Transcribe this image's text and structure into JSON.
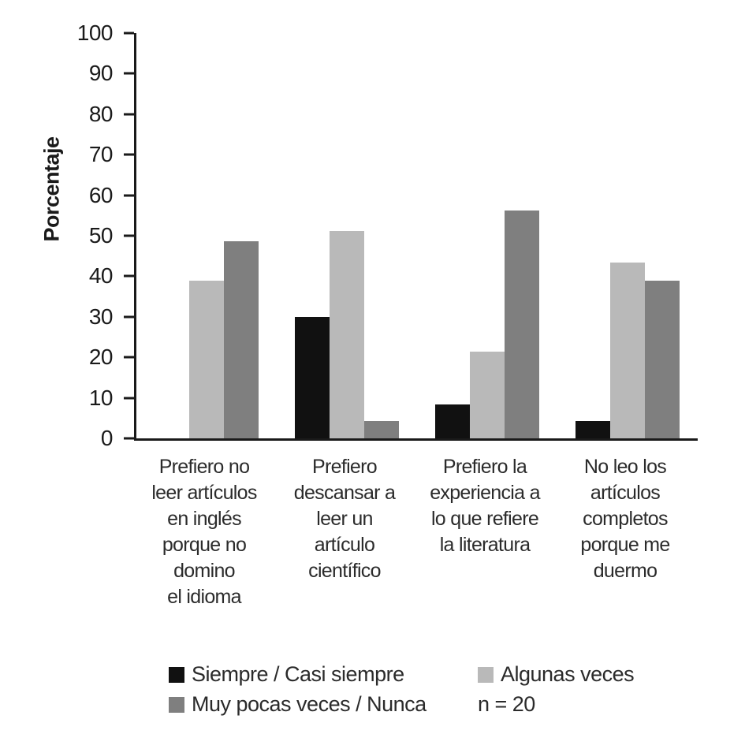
{
  "chart_data": {
    "type": "bar",
    "title": "",
    "xlabel": "",
    "ylabel": "Porcentaje",
    "ylim": [
      0,
      100
    ],
    "ytick_step": 10,
    "grid": false,
    "legend_position": "bottom",
    "note": "n = 20",
    "categories": [
      "Prefiero no\nleer artículos\nen inglés\nporque no domino\nel idioma",
      "Prefiero\ndescansar a\nleer un\nartículo\ncientífico",
      "Prefiero la\nexperiencia a\nlo que refiere\nla literatura",
      "No leo los\nartículos\ncompletos\nporque me\nduermo"
    ],
    "series": [
      {
        "name": "Siempre / Casi siempre",
        "color": "#111111",
        "values": [
          0,
          30,
          8.3,
          4.3
        ]
      },
      {
        "name": "Algunas veces",
        "color": "#b9b9b9",
        "values": [
          39,
          51.2,
          21.5,
          43.3
        ]
      },
      {
        "name": "Muy pocas veces / Nunca",
        "color": "#7f7f7f",
        "values": [
          48.7,
          4.3,
          56.2,
          39
        ]
      }
    ],
    "colors": {
      "axis": "#1a1a1a",
      "text": "#2b2b2b",
      "background": "#ffffff"
    }
  }
}
